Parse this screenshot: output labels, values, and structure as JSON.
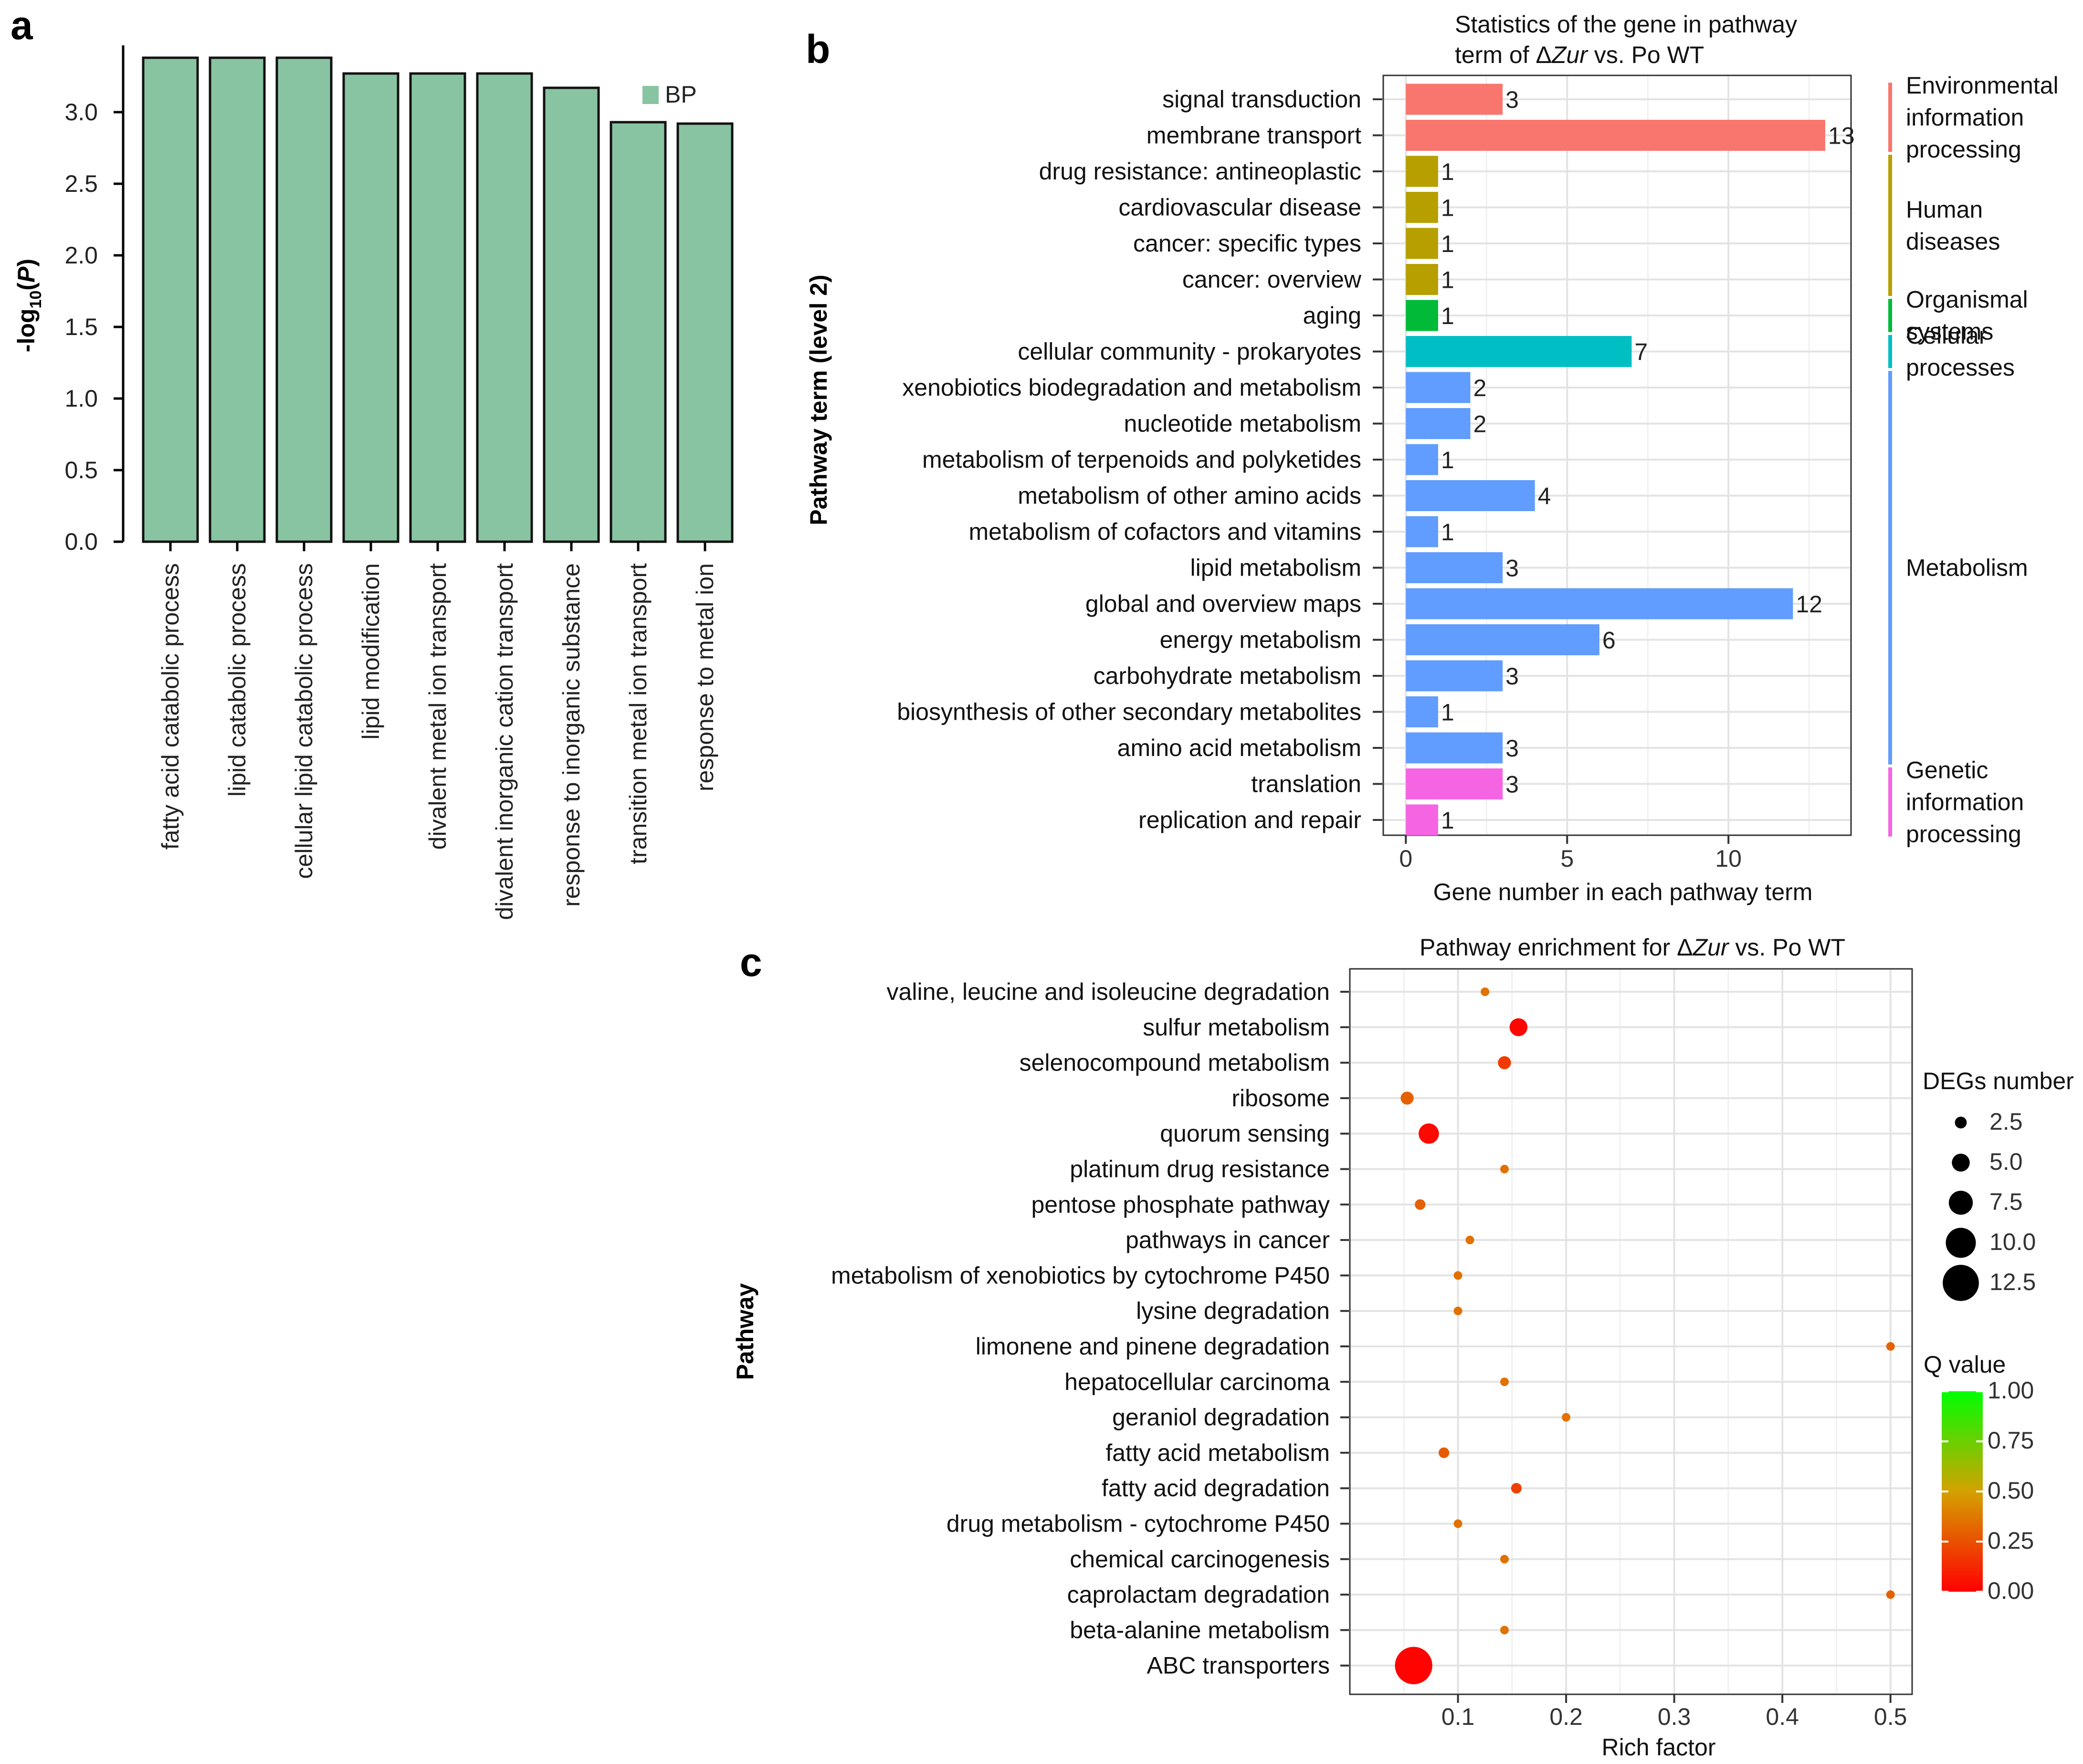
{
  "chart_data": [
    {
      "panel": "a",
      "type": "bar",
      "legend": "BP",
      "ylabel": "-log10(P)",
      "ylim": [
        0,
        3.5
      ],
      "yticks": [
        "0.0",
        "0.5",
        "1.0",
        "1.5",
        "2.0",
        "2.5",
        "3.0"
      ],
      "categories": [
        "fatty acid catabolic process",
        "lipid catabolic process",
        "cellular lipid catabolic process",
        "lipid modification",
        "divalent metal ion transport",
        "divalent inorganic cation transport",
        "response to inorganic substance",
        "transition metal ion transport",
        "response to metal ion"
      ],
      "values": [
        3.38,
        3.38,
        3.38,
        3.27,
        3.27,
        3.27,
        3.17,
        2.93,
        2.92
      ],
      "color": "#88c4a1"
    },
    {
      "panel": "b",
      "type": "bar",
      "orientation": "horizontal",
      "title_line1": "Statistics of the gene in pathway",
      "title_line2_prefix": "term of Δ",
      "title_line2_italic": "Zur",
      "title_line2_suffix": " vs. Po WT",
      "xlabel": "Gene number in each pathway term",
      "ylabel": "Pathway term (level 2)",
      "xlim": [
        -0.7,
        13.8
      ],
      "xticks": [
        "0",
        "5",
        "10"
      ],
      "categories": [
        "signal transduction",
        "membrane transport",
        "drug resistance: antineoplastic",
        "cardiovascular disease",
        "cancer: specific types",
        "cancer: overview",
        "aging",
        "cellular community - prokaryotes",
        "xenobiotics biodegradation and metabolism",
        "nucleotide metabolism",
        "metabolism of terpenoids and polyketides",
        "metabolism of other amino acids",
        "metabolism of cofactors and vitamins",
        "lipid metabolism",
        "global and overview maps",
        "energy metabolism",
        "carbohydrate metabolism",
        "biosynthesis of other secondary metabolites",
        "amino acid metabolism",
        "translation",
        "replication and repair"
      ],
      "values": [
        3,
        13,
        1,
        1,
        1,
        1,
        1,
        7,
        2,
        2,
        1,
        4,
        1,
        3,
        12,
        6,
        3,
        1,
        3,
        3,
        1
      ],
      "value_labels": [
        "3",
        "13",
        "1",
        "1",
        "1",
        "1",
        "1",
        "7",
        "2",
        "2",
        "1",
        "4",
        "1",
        "3",
        "12",
        "6",
        "3",
        "1",
        "3",
        "3",
        "1"
      ],
      "groups": [
        {
          "name": "Environmental information processing",
          "lines": [
            "Environmental",
            "information",
            "processing"
          ],
          "start": 0,
          "end": 1,
          "color": "#f8766d"
        },
        {
          "name": "Human diseases",
          "lines": [
            "Human",
            "diseases"
          ],
          "start": 2,
          "end": 5,
          "color": "#b79f00"
        },
        {
          "name": "Organismal systems",
          "lines": [
            "Organismal",
            "systems"
          ],
          "start": 6,
          "end": 6,
          "color": "#00ba38"
        },
        {
          "name": "Cellular processes",
          "lines": [
            "Cellular",
            "processes"
          ],
          "start": 7,
          "end": 7,
          "color": "#00bfc4"
        },
        {
          "name": "Metabolism",
          "lines": [
            "Metabolism"
          ],
          "start": 8,
          "end": 18,
          "color": "#619cff"
        },
        {
          "name": "Genetic information processing",
          "lines": [
            "Genetic",
            "information",
            "processing"
          ],
          "start": 19,
          "end": 20,
          "color": "#f564e3"
        }
      ]
    },
    {
      "panel": "c",
      "type": "scatter",
      "title_prefix": "Pathway enrichment for Δ",
      "title_italic": "Zur",
      "title_suffix": " vs. Po WT",
      "xlabel": "Rich factor",
      "ylabel": "Pathway",
      "xlim": [
        0.0,
        0.52
      ],
      "xticks": [
        0.1,
        0.2,
        0.3,
        0.4,
        0.5
      ],
      "xtick_labels": [
        "0.1",
        "0.2",
        "0.3",
        "0.4",
        "0.5"
      ],
      "categories": [
        "valine, leucine and isoleucine degradation",
        "sulfur metabolism",
        "selenocompound metabolism",
        "ribosome",
        "quorum sensing",
        "platinum drug resistance",
        "pentose phosphate pathway",
        "pathways in cancer",
        "metabolism of xenobiotics by cytochrome P450",
        "lysine degradation",
        "limonene and pinene degradation",
        "hepatocellular carcinoma",
        "geraniol degradation",
        "fatty acid metabolism",
        "fatty acid degradation",
        "drug metabolism - cytochrome P450",
        "chemical carcinogenesis",
        "caprolactam degradation",
        "beta-alanine metabolism",
        "ABC transporters"
      ],
      "points": [
        {
          "rich": 0.125,
          "deg": 1,
          "q": 0.35
        },
        {
          "rich": 0.156,
          "deg": 5,
          "q": 0.02
        },
        {
          "rich": 0.143,
          "deg": 3,
          "q": 0.18
        },
        {
          "rich": 0.053,
          "deg": 3,
          "q": 0.3
        },
        {
          "rich": 0.073,
          "deg": 6,
          "q": 0.03
        },
        {
          "rich": 0.143,
          "deg": 1,
          "q": 0.35
        },
        {
          "rich": 0.065,
          "deg": 2,
          "q": 0.3
        },
        {
          "rich": 0.111,
          "deg": 1,
          "q": 0.35
        },
        {
          "rich": 0.1,
          "deg": 1,
          "q": 0.35
        },
        {
          "rich": 0.1,
          "deg": 1,
          "q": 0.35
        },
        {
          "rich": 0.5,
          "deg": 1,
          "q": 0.3
        },
        {
          "rich": 0.143,
          "deg": 1,
          "q": 0.35
        },
        {
          "rich": 0.2,
          "deg": 1,
          "q": 0.35
        },
        {
          "rich": 0.087,
          "deg": 2,
          "q": 0.28
        },
        {
          "rich": 0.154,
          "deg": 2,
          "q": 0.2
        },
        {
          "rich": 0.1,
          "deg": 1,
          "q": 0.35
        },
        {
          "rich": 0.143,
          "deg": 1,
          "q": 0.35
        },
        {
          "rich": 0.5,
          "deg": 1,
          "q": 0.3
        },
        {
          "rich": 0.143,
          "deg": 1,
          "q": 0.35
        },
        {
          "rich": 0.059,
          "deg": 13,
          "q": 0.01
        }
      ],
      "size_legend": {
        "title": "DEGs number",
        "values": [
          2.5,
          5.0,
          7.5,
          10.0,
          12.5
        ],
        "labels": [
          "2.5",
          "5.0",
          "7.5",
          "10.0",
          "12.5"
        ]
      },
      "color_legend": {
        "title": "Q value",
        "range": [
          0,
          1
        ],
        "labels": [
          "0.00",
          "0.25",
          "0.50",
          "0.75",
          "1.00"
        ],
        "low_color": "#ff0000",
        "high_color": "#00ff00"
      }
    }
  ],
  "panels": {
    "a": "a",
    "b": "b",
    "c": "c"
  }
}
